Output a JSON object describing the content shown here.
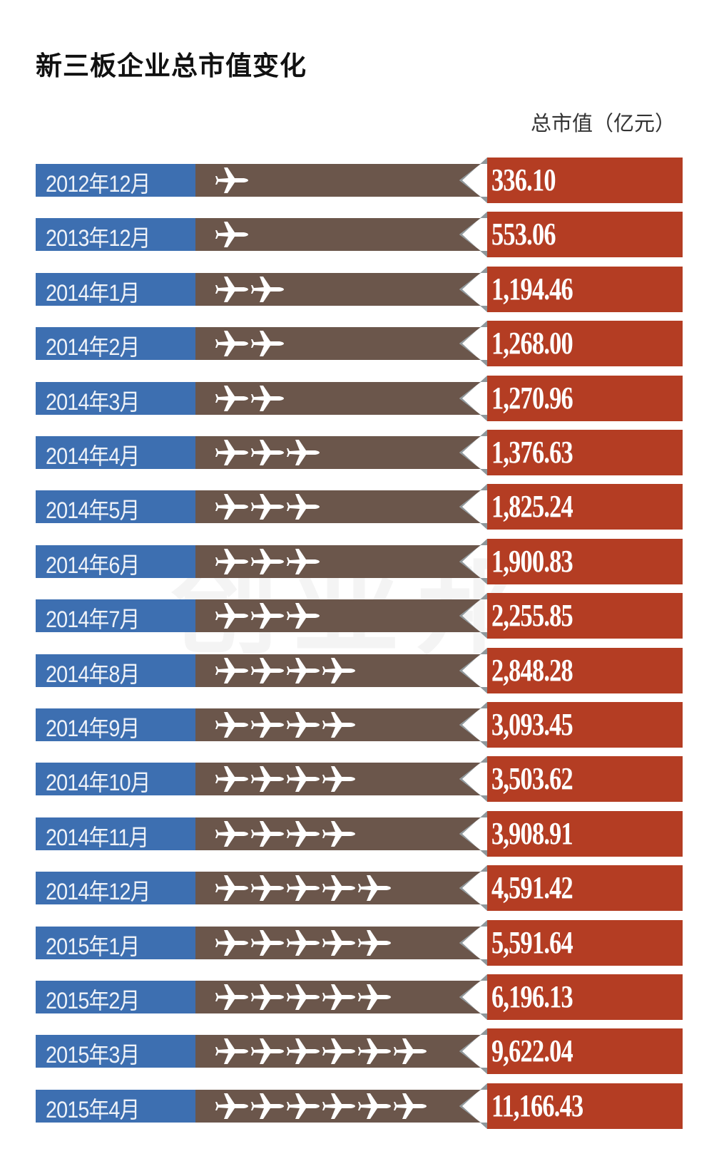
{
  "title": "新三板企业总市值变化",
  "unit_label": "总市值（亿元）",
  "watermark": "创业邦",
  "colors": {
    "date_bg": "#3d6fb1",
    "bar_bg": "#6b564b",
    "value_bg": "#b43d23",
    "notch": "#8e979b",
    "plane": "#ffffff"
  },
  "chart_data": {
    "type": "table",
    "title": "新三板企业总市值变化",
    "ylabel": "总市值（亿元）",
    "categories": [
      "2012年12月",
      "2013年12月",
      "2014年1月",
      "2014年2月",
      "2014年3月",
      "2014年4月",
      "2014年5月",
      "2014年6月",
      "2014年7月",
      "2014年8月",
      "2014年9月",
      "2014年10月",
      "2014年11月",
      "2014年12月",
      "2015年1月",
      "2015年2月",
      "2015年3月",
      "2015年4月"
    ],
    "value_labels": [
      "336.10",
      "553.06",
      "1,194.46",
      "1,268.00",
      "1,270.96",
      "1,376.63",
      "1,825.24",
      "1,900.83",
      "2,255.85",
      "2,848.28",
      "3,093.45",
      "3,503.62",
      "3,908.91",
      "4,591.42",
      "5,591.64",
      "6,196.13",
      "9,622.04",
      "11,166.43"
    ],
    "values": [
      336.1,
      553.06,
      1194.46,
      1268.0,
      1270.96,
      1376.63,
      1825.24,
      1900.83,
      2255.85,
      2848.28,
      3093.45,
      3503.62,
      3908.91,
      4591.42,
      5591.64,
      6196.13,
      9622.04,
      11166.43
    ],
    "plane_counts": [
      1,
      1,
      2,
      2,
      2,
      3,
      3,
      3,
      3,
      4,
      4,
      4,
      4,
      5,
      5,
      5,
      6,
      6
    ]
  }
}
